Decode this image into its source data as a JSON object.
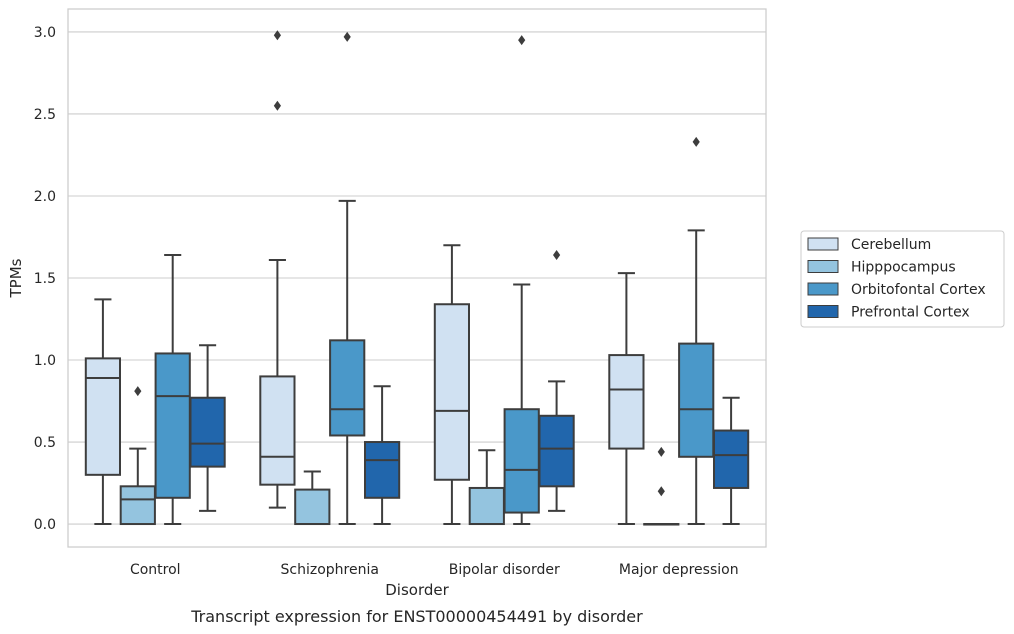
{
  "chart_data": {
    "type": "box",
    "caption": "Transcript expression for ENST00000454491 by disorder",
    "xlabel": "Disorder",
    "ylabel": "TPMs",
    "ylim": [
      -0.14,
      3.14
    ],
    "yticks": [
      0.0,
      0.5,
      1.0,
      1.5,
      2.0,
      2.5,
      3.0
    ],
    "ytick_labels": [
      "0.0",
      "0.5",
      "1.0",
      "1.5",
      "2.0",
      "2.5",
      "3.0"
    ],
    "grid": "horizontal",
    "legend_position": "right",
    "categories": [
      "Control",
      "Schizophrenia",
      "Bipolar disorder",
      "Major depression"
    ],
    "series": [
      {
        "name": "Cerebellum",
        "color": "#d0e1f2",
        "boxes": [
          {
            "q1": 0.3,
            "median": 0.89,
            "q3": 1.01,
            "whislo": 0.0,
            "whishi": 1.37,
            "fliers": []
          },
          {
            "q1": 0.24,
            "median": 0.41,
            "q3": 0.9,
            "whislo": 0.1,
            "whishi": 1.61,
            "fliers": [
              2.55,
              2.98
            ]
          },
          {
            "q1": 0.27,
            "median": 0.69,
            "q3": 1.34,
            "whislo": 0.0,
            "whishi": 1.7,
            "fliers": []
          },
          {
            "q1": 0.46,
            "median": 0.82,
            "q3": 1.03,
            "whislo": 0.0,
            "whishi": 1.53,
            "fliers": []
          }
        ]
      },
      {
        "name": "Hipppocampus",
        "color": "#94c4df",
        "boxes": [
          {
            "q1": 0.0,
            "median": 0.15,
            "q3": 0.23,
            "whislo": 0.0,
            "whishi": 0.46,
            "fliers": [
              0.81
            ]
          },
          {
            "q1": 0.0,
            "median": 0.0,
            "q3": 0.21,
            "whislo": 0.0,
            "whishi": 0.32,
            "fliers": []
          },
          {
            "q1": 0.0,
            "median": 0.0,
            "q3": 0.22,
            "whislo": 0.0,
            "whishi": 0.45,
            "fliers": []
          },
          {
            "q1": 0.0,
            "median": 0.0,
            "q3": 0.0,
            "whislo": 0.0,
            "whishi": 0.0,
            "fliers": [
              0.2,
              0.44
            ]
          }
        ]
      },
      {
        "name": "Orbitofontal Cortex",
        "color": "#4a98c9",
        "boxes": [
          {
            "q1": 0.16,
            "median": 0.78,
            "q3": 1.04,
            "whislo": 0.0,
            "whishi": 1.64,
            "fliers": []
          },
          {
            "q1": 0.54,
            "median": 0.7,
            "q3": 1.12,
            "whislo": 0.0,
            "whishi": 1.97,
            "fliers": [
              2.97
            ]
          },
          {
            "q1": 0.07,
            "median": 0.33,
            "q3": 0.7,
            "whislo": 0.0,
            "whishi": 1.46,
            "fliers": [
              2.95
            ]
          },
          {
            "q1": 0.41,
            "median": 0.7,
            "q3": 1.1,
            "whislo": 0.0,
            "whishi": 1.79,
            "fliers": [
              2.33
            ]
          }
        ]
      },
      {
        "name": "Prefrontal Cortex",
        "color": "#2166ac",
        "boxes": [
          {
            "q1": 0.35,
            "median": 0.49,
            "q3": 0.77,
            "whislo": 0.08,
            "whishi": 1.09,
            "fliers": []
          },
          {
            "q1": 0.16,
            "median": 0.39,
            "q3": 0.5,
            "whislo": 0.0,
            "whishi": 0.84,
            "fliers": []
          },
          {
            "q1": 0.23,
            "median": 0.46,
            "q3": 0.66,
            "whislo": 0.08,
            "whishi": 0.87,
            "fliers": [
              1.64
            ]
          },
          {
            "q1": 0.22,
            "median": 0.42,
            "q3": 0.57,
            "whislo": 0.0,
            "whishi": 0.77,
            "fliers": []
          }
        ]
      }
    ]
  }
}
